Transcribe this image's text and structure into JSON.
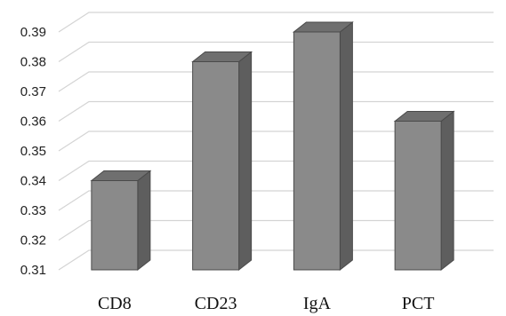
{
  "chart_data": {
    "type": "bar",
    "style": "3d-column",
    "categories": [
      "CD8",
      "CD23",
      "IgA",
      "PCT"
    ],
    "values": [
      0.34,
      0.38,
      0.39,
      0.36
    ],
    "title": "",
    "xlabel": "",
    "ylabel": "",
    "ylim": [
      0.31,
      0.39
    ],
    "yticks": [
      "0.31",
      "0.32",
      "0.33",
      "0.34",
      "0.35",
      "0.36",
      "0.37",
      "0.38",
      "0.39"
    ],
    "grid": true,
    "legend": "none",
    "colors": {
      "bar_front": "#8a8a8a",
      "bar_side": "#5e5e5e",
      "bar_top": "#6f6f6f",
      "bar_edge": "#4a4a4a",
      "grid": "#d4d4d4"
    }
  }
}
